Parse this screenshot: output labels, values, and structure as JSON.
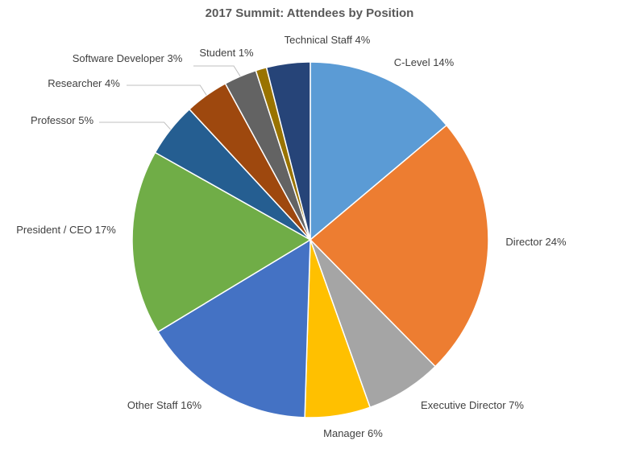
{
  "chart_data": {
    "type": "pie",
    "title": "2017 Summit: Attendees by Position",
    "slices": [
      {
        "name": "C-Level",
        "label": "C-Level 14%",
        "value": 14,
        "color": "#5b9bd5"
      },
      {
        "name": "Director",
        "label": "Director 24%",
        "value": 24,
        "color": "#ed7d31"
      },
      {
        "name": "Executive Director",
        "label": "Executive Director 7%",
        "value": 7,
        "color": "#a5a5a5"
      },
      {
        "name": "Manager",
        "label": "Manager 6%",
        "value": 6,
        "color": "#ffc000"
      },
      {
        "name": "Other Staff",
        "label": "Other Staff 16%",
        "value": 16,
        "color": "#4472c4"
      },
      {
        "name": "President / CEO",
        "label": "President / CEO 17%",
        "value": 17,
        "color": "#70ad47"
      },
      {
        "name": "Professor",
        "label": "Professor 5%",
        "value": 5,
        "color": "#255e91"
      },
      {
        "name": "Researcher",
        "label": "Researcher 4%",
        "value": 4,
        "color": "#9e480e"
      },
      {
        "name": "Software Developer",
        "label": "Software Developer 3%",
        "value": 3,
        "color": "#636363"
      },
      {
        "name": "Student",
        "label": "Student 1%",
        "value": 1,
        "color": "#997300"
      },
      {
        "name": "Technical Staff",
        "label": "Technical Staff 4%",
        "value": 4,
        "color": "#264478"
      }
    ],
    "legend": "none",
    "labels": "outside-end with leader lines"
  }
}
